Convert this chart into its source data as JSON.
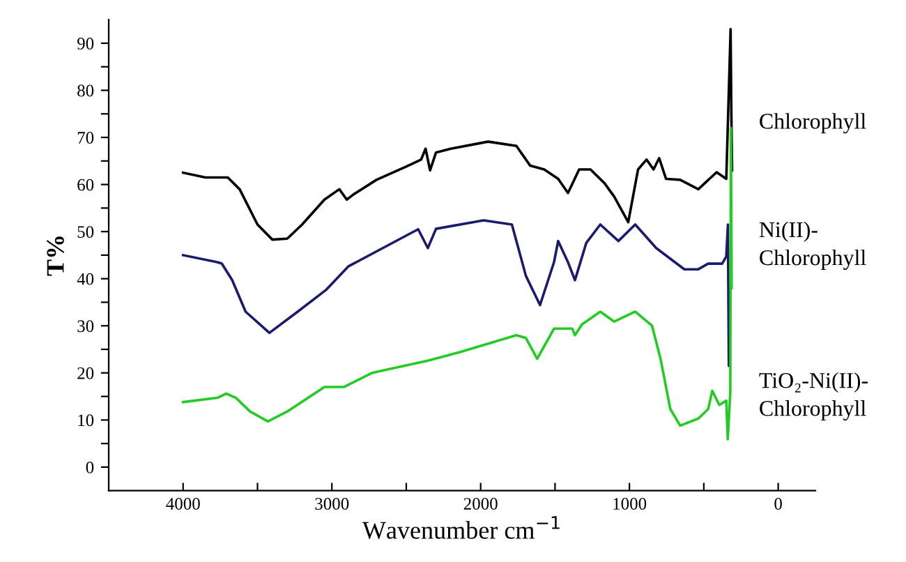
{
  "chart_data": {
    "type": "line",
    "xlabel": "Wavenumber cm$^{−1}$",
    "ylabel": "T%",
    "xlim": [
      4500,
      -250
    ],
    "ylim": [
      -5,
      95
    ],
    "xticks": [
      4000,
      3000,
      2000,
      1000,
      0,
      {
        "value": 3500,
        "label": null
      },
      {
        "value": 2500,
        "label": null
      },
      {
        "value": 1500,
        "label": null
      },
      {
        "value": 500,
        "label": null
      }
    ],
    "yticks": [
      0,
      10,
      20,
      30,
      40,
      50,
      60,
      70,
      80,
      90,
      {
        "value": 5,
        "label": null
      },
      {
        "value": 15,
        "label": null
      },
      {
        "value": 25,
        "label": null
      },
      {
        "value": 35,
        "label": null
      },
      {
        "value": 45,
        "label": null
      },
      {
        "value": 55,
        "label": null
      },
      {
        "value": 65,
        "label": null
      },
      {
        "value": 75,
        "label": null
      },
      {
        "value": 85,
        "label": null
      }
    ],
    "grid": false,
    "legend": false,
    "marker": "none",
    "line_style": "solid",
    "series": [
      {
        "name": "Chlorophyll",
        "color": "#000000",
        "x": [
          4000,
          3850,
          3700,
          3620,
          3500,
          3400,
          3300,
          3200,
          3050,
          2950,
          2900,
          2850,
          2700,
          2500,
          2400,
          2370,
          2340,
          2300,
          2200,
          1950,
          1760,
          1667,
          1573,
          1479,
          1413,
          1338,
          1262,
          1168,
          1102,
          1008,
          942,
          885,
          838,
          800,
          754,
          659,
          537,
          414,
          349,
          320,
          315,
          310
        ],
        "values": [
          62.5,
          61.5,
          61.5,
          59,
          51.5,
          48.3,
          48.5,
          51.5,
          56.8,
          59,
          56.8,
          58,
          61,
          63.8,
          65.3,
          67.6,
          63,
          66.8,
          67.6,
          69.1,
          68.2,
          64,
          63.2,
          61.2,
          58.2,
          63.2,
          63.2,
          60.3,
          57.4,
          52,
          63.2,
          65.3,
          63.2,
          65.6,
          61.2,
          61,
          59,
          62.6,
          61.2,
          93,
          75,
          63
        ]
      },
      {
        "name": "Ni(II)-\nChlorophyll",
        "color": "#1a1a6e",
        "x": [
          4000,
          3770,
          3740,
          3670,
          3580,
          3420,
          3230,
          3040,
          2890,
          2420,
          2355,
          2300,
          1980,
          1790,
          1696,
          1601,
          1507,
          1479,
          1413,
          1366,
          1290,
          1196,
          1074,
          961,
          820,
          631,
          537,
          471,
          377,
          349,
          338,
          332,
          328
        ],
        "values": [
          45,
          43.5,
          43.2,
          39.7,
          33,
          28.5,
          33,
          37.6,
          42.6,
          50.5,
          46.5,
          50.6,
          52.4,
          51.5,
          40.6,
          34.4,
          43.5,
          48,
          43.5,
          39.7,
          47.6,
          51.5,
          48,
          51.5,
          46.5,
          42,
          42,
          43.2,
          43.2,
          44.7,
          51.5,
          21.5,
          38
        ]
      },
      {
        "name": "TiO₂-Ni(II)-\nChlorophyll",
        "color": "#22cc22",
        "x": [
          4000,
          3770,
          3710,
          3645,
          3550,
          3430,
          3300,
          3050,
          2920,
          2730,
          2355,
          2140,
          1760,
          1696,
          1620,
          1507,
          1385,
          1366,
          1319,
          1196,
          1102,
          961,
          848,
          791,
          725,
          659,
          537,
          471,
          443,
          396,
          349,
          339,
          322,
          318,
          313
        ],
        "values": [
          13.8,
          14.7,
          15.6,
          14.7,
          11.8,
          9.7,
          11.8,
          17,
          17,
          20,
          22.6,
          24.4,
          28,
          27.4,
          23,
          29.4,
          29.4,
          28,
          30.3,
          33,
          30.9,
          33,
          30,
          23,
          12.3,
          8.8,
          10.3,
          12.3,
          16.2,
          13.2,
          14.1,
          5.9,
          16,
          72,
          38
        ]
      }
    ]
  }
}
